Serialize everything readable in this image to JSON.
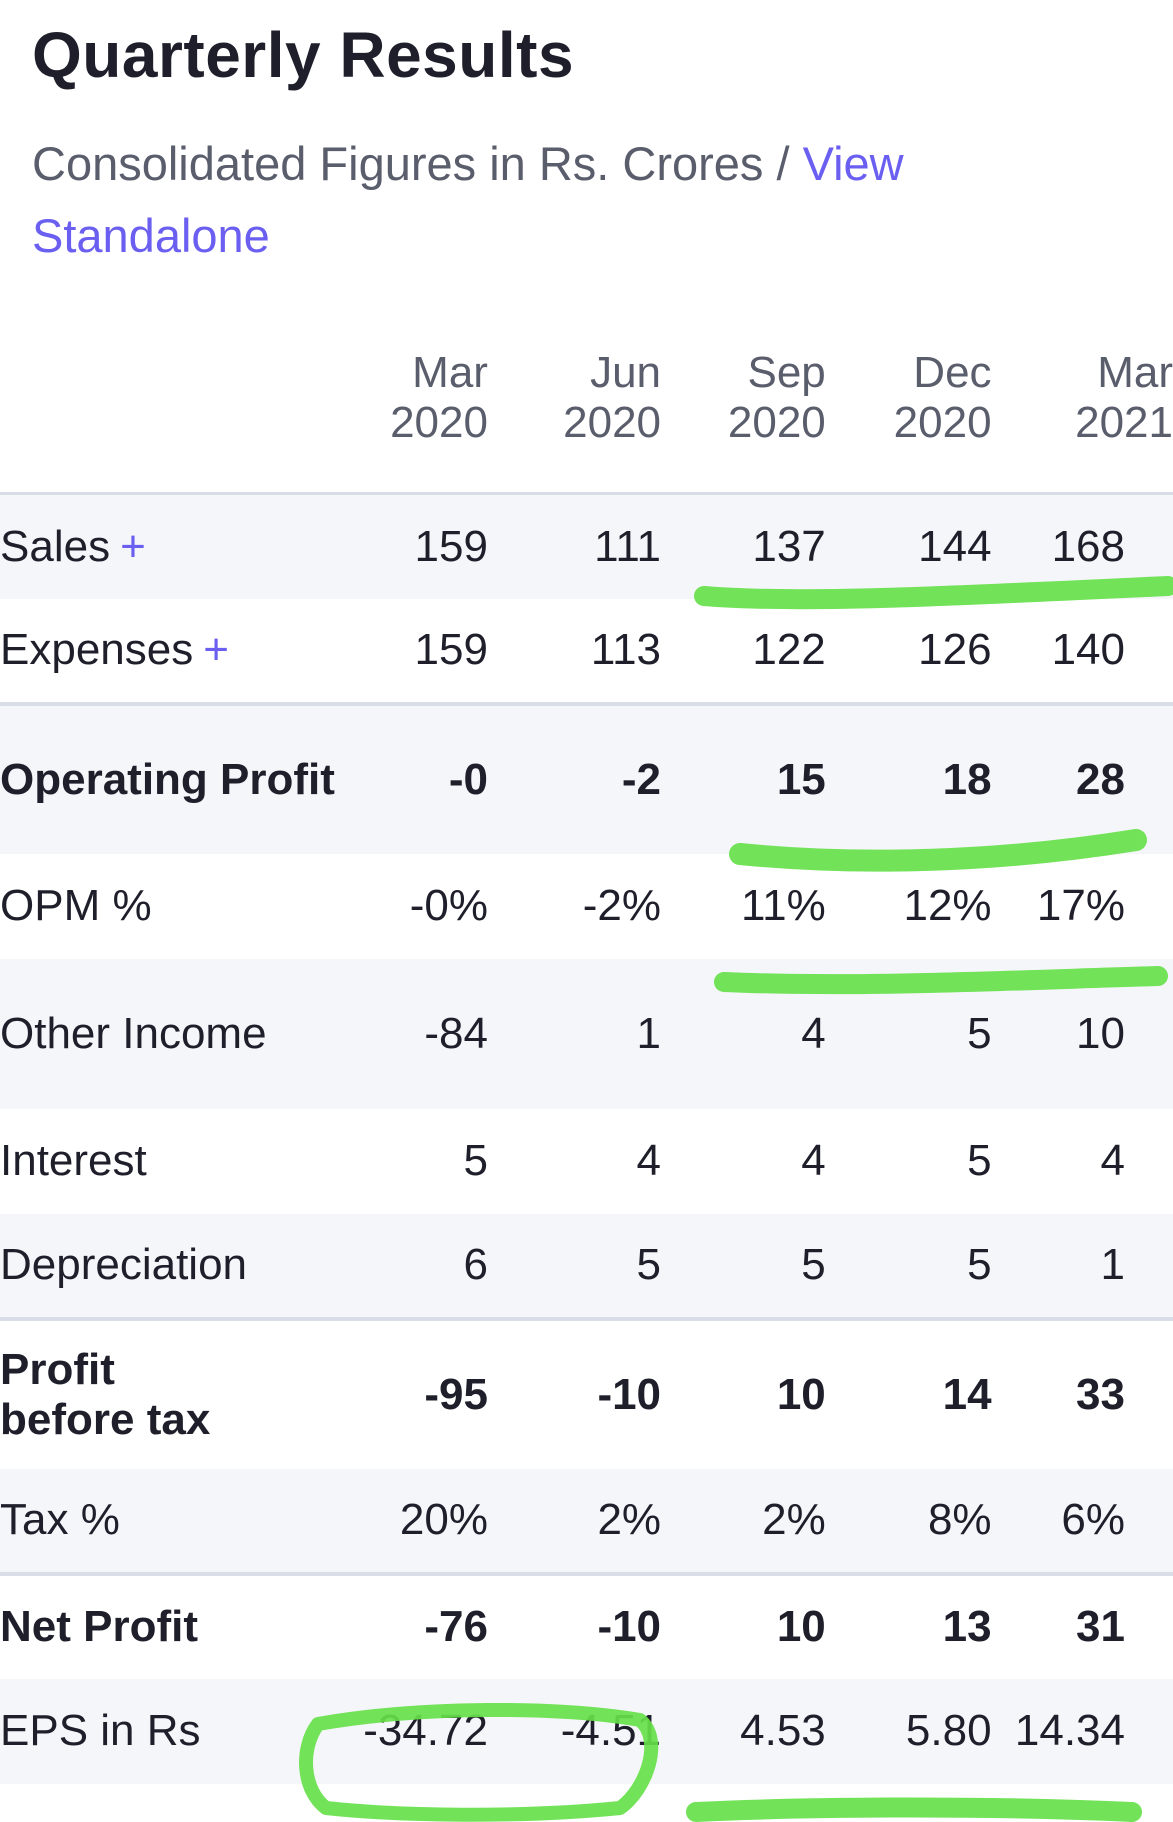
{
  "header": {
    "title": "Quarterly Results",
    "subtitle_prefix": "Consolidated Figures in Rs. Crores / ",
    "view_link": "View Standalone"
  },
  "columns": [
    {
      "month": "Mar",
      "year": "2020"
    },
    {
      "month": "Jun",
      "year": "2020"
    },
    {
      "month": "Sep",
      "year": "2020"
    },
    {
      "month": "Dec",
      "year": "2020"
    },
    {
      "month": "Mar",
      "year": "2021"
    }
  ],
  "rows": [
    {
      "label": "Sales",
      "expandable": "+",
      "values": [
        "159",
        "111",
        "137",
        "144",
        "168"
      ]
    },
    {
      "label": "Expenses",
      "expandable": "+",
      "values": [
        "159",
        "113",
        "122",
        "126",
        "140"
      ]
    },
    {
      "label": "Operating Profit",
      "values": [
        "-0",
        "-2",
        "15",
        "18",
        "28"
      ]
    },
    {
      "label": "OPM %",
      "values": [
        "-0%",
        "-2%",
        "11%",
        "12%",
        "17%"
      ]
    },
    {
      "label": "Other Income",
      "values": [
        "-84",
        "1",
        "4",
        "5",
        "10"
      ]
    },
    {
      "label": "Interest",
      "values": [
        "5",
        "4",
        "4",
        "5",
        "4"
      ]
    },
    {
      "label": "Depreciation",
      "values": [
        "6",
        "5",
        "5",
        "5",
        "1"
      ]
    },
    {
      "label": "Profit before tax",
      "values": [
        "-95",
        "-10",
        "10",
        "14",
        "33"
      ]
    },
    {
      "label": "Tax %",
      "values": [
        "20%",
        "2%",
        "2%",
        "8%",
        "6%"
      ]
    },
    {
      "label": "Net Profit",
      "values": [
        "-76",
        "-10",
        "10",
        "13",
        "31"
      ]
    },
    {
      "label": "EPS in Rs",
      "values": [
        "-34.72",
        "-4.51",
        "4.53",
        "5.80",
        "14.34"
      ]
    }
  ],
  "colors": {
    "highlight": "#66e04a",
    "link": "#6a5ff0",
    "row_alt": "#f5f6fa"
  }
}
